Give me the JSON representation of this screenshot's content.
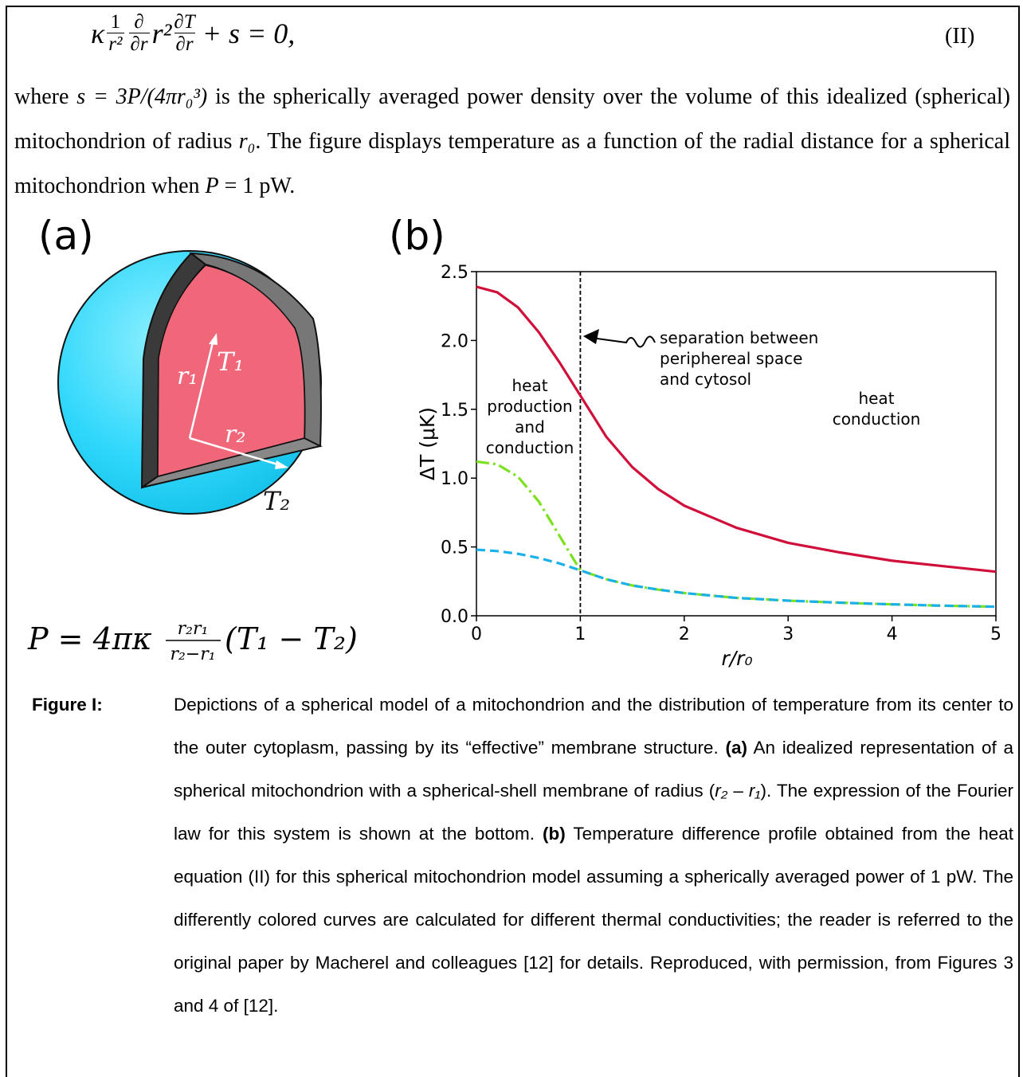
{
  "equation": {
    "lead": "κ",
    "frac1": {
      "num": "1",
      "den": "r²"
    },
    "frac2": {
      "num": "∂",
      "den": "∂r"
    },
    "mid": "r²",
    "frac3": {
      "num": "∂T",
      "den": "∂r"
    },
    "tail": "+ s = 0,",
    "number": "(II)"
  },
  "paragraph": [
    "where ",
    "s = 3P/(4πr₀³)",
    "  is the spherically averaged power density over the volume of this idealized (spherical) mitochondrion of radius ",
    "r₀",
    ". The figure displays temperature as a function of the radial distance for a spherical mitochondrion when ",
    "P",
    " = 1 pW."
  ],
  "panel_a": {
    "label": "(a)",
    "r1": "r₁",
    "T1": "T₁",
    "r2": "r₂",
    "T2": "T₂",
    "formula": {
      "lhs": "P = 4πκ",
      "num": "r₂r₁",
      "den": "r₂−r₁",
      "rhs": "(T₁ − T₂)"
    }
  },
  "chart_data": {
    "type": "line",
    "title": "(b)",
    "x_label": "r/r₀",
    "y_label": "ΔT (μK)",
    "xlim": [
      0,
      5
    ],
    "ylim": [
      0,
      2.5
    ],
    "xticks": [
      0,
      1,
      2,
      3,
      4,
      5
    ],
    "yticks": [
      {
        "value": 0,
        "label": "0.0"
      },
      0.5,
      {
        "value": 1,
        "label": "1.0"
      },
      1.5,
      {
        "value": 2,
        "label": "2.0"
      },
      2.5
    ],
    "vline": 1,
    "annotations": [
      [
        "separation between",
        "periphereal space",
        "and cytosol"
      ],
      [
        "heat",
        "production",
        "and",
        "conduction"
      ],
      [
        "heat",
        "conduction"
      ]
    ],
    "x": [
      0,
      0.2,
      0.4,
      0.6,
      0.8,
      1,
      1.25,
      1.5,
      1.75,
      2,
      2.5,
      3,
      3.5,
      4,
      4.5,
      5
    ],
    "series": [
      {
        "color": "#d0103a",
        "dash": "solid",
        "values": [
          2.39,
          2.35,
          2.24,
          2.06,
          1.84,
          1.6,
          1.3,
          1.08,
          0.92,
          0.8,
          0.64,
          0.53,
          0.46,
          0.4,
          0.36,
          0.32
        ]
      },
      {
        "color": "#7be11f",
        "dash": "dashdot",
        "values": [
          1.12,
          1.1,
          1.01,
          0.83,
          0.58,
          0.33,
          0.265,
          0.22,
          0.19,
          0.165,
          0.13,
          0.11,
          0.095,
          0.083,
          0.073,
          0.066
        ]
      },
      {
        "color": "#1ab0e8",
        "dash": "dashed",
        "values": [
          0.48,
          0.47,
          0.45,
          0.42,
          0.38,
          0.33,
          0.265,
          0.22,
          0.19,
          0.165,
          0.13,
          0.11,
          0.095,
          0.083,
          0.073,
          0.066
        ]
      }
    ]
  },
  "caption": {
    "label": "Figure I:",
    "runs": [
      "Depictions of a spherical model of a mitochondrion and the distribution of temperature from its center to the outer cytoplasm, passing by its “effective” membrane structure. ",
      "(a)",
      " An idealized representation of a spherical mitochondrion with a spherical-shell membrane of radius (",
      "r₂",
      " – ",
      "r₁",
      "). The expression of the Fourier law for this system is shown at the bottom. ",
      "(b)",
      " Temperature difference profile obtained from the heat equation (II) for this spherical mitochondrion model assuming a spherically averaged power of 1 pW. The differently colored curves are calculated for different thermal conductivities; the reader is referred to the original paper by Macherel and colleagues [12] for details.  Reproduced, with permission, from Figures 3 and 4 of [12]."
    ]
  }
}
